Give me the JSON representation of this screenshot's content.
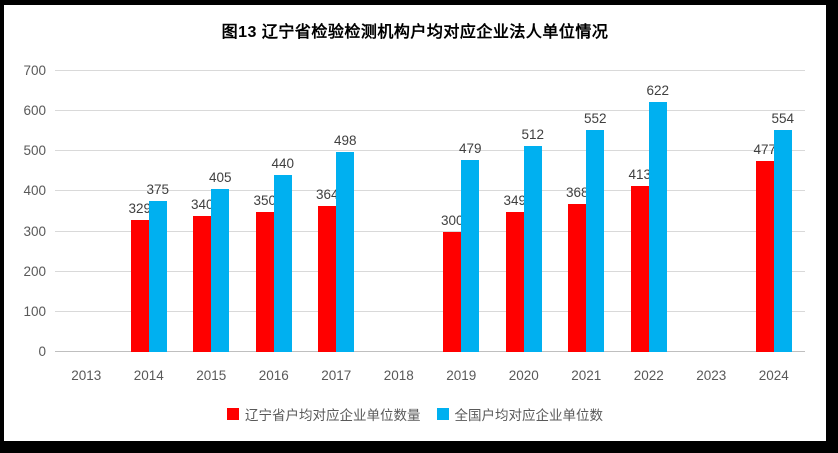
{
  "title": "图13 辽宁省检验检测机构户均对应企业法人单位情况",
  "frame": {
    "border_color": "#000000",
    "background": "#ffffff"
  },
  "colors": {
    "grid": "#d9d9d9",
    "baseline": "#bfbfbf",
    "axis_text": "#595959",
    "data_label_text": "#3f3f3f",
    "title_text": "#000000"
  },
  "chart_data": {
    "type": "bar",
    "title": "图13 辽宁省检验检测机构户均对应企业法人单位情况",
    "categories": [
      "2013",
      "2014",
      "2015",
      "2016",
      "2017",
      "2018",
      "2019",
      "2020",
      "2021",
      "2022",
      "2023",
      "2024"
    ],
    "series": [
      {
        "key": "liaoning",
        "name": "辽宁省户均对应企业单位数量",
        "color": "#ff0000",
        "values": [
          null,
          329,
          340,
          350,
          364,
          null,
          300,
          349,
          368,
          413,
          null,
          477
        ]
      },
      {
        "key": "national",
        "name": "全国户均对应企业单位数",
        "color": "#00b0f0",
        "values": [
          null,
          375,
          405,
          440,
          498,
          null,
          479,
          512,
          552,
          622,
          null,
          554
        ]
      }
    ],
    "xlabel": "",
    "ylabel": "",
    "ylim": [
      0,
      700
    ],
    "ytick_step": 100,
    "grid": true,
    "value_labels": true,
    "legend_position": "bottom"
  }
}
